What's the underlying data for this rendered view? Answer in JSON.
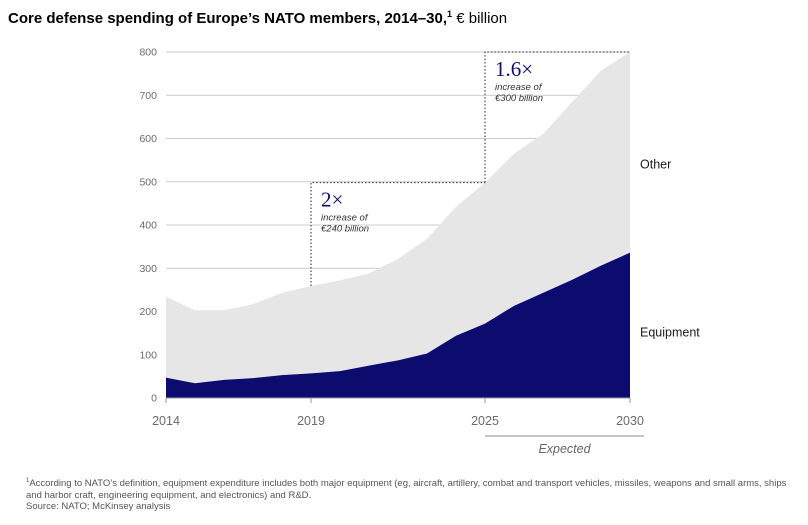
{
  "title": {
    "main": "Core defense spending of Europe’s NATO members, 2014–30,",
    "footnote_ref": "1",
    "unit": " € billion"
  },
  "chart_data": {
    "type": "area",
    "x": [
      2014,
      2015,
      2016,
      2017,
      2018,
      2019,
      2020,
      2021,
      2022,
      2023,
      2024,
      2025,
      2026,
      2027,
      2028,
      2029,
      2030
    ],
    "series": [
      {
        "name": "Equipment",
        "values": [
          47,
          34,
          42,
          46,
          53,
          57,
          62,
          75,
          87,
          103,
          144,
          172,
          213,
          243,
          273,
          306,
          336
        ]
      },
      {
        "name": "Other",
        "values": [
          187,
          169,
          161,
          171,
          190,
          202,
          210,
          213,
          235,
          265,
          298,
          326,
          352,
          367,
          411,
          451,
          464
        ]
      }
    ],
    "total": [
      234,
      203,
      203,
      217,
      243,
      259,
      272,
      288,
      322,
      368,
      442,
      498,
      565,
      610,
      684,
      757,
      800
    ],
    "xticks": [
      "2014",
      "2019",
      "2025",
      "2030"
    ],
    "yticks": [
      "0",
      "100",
      "200",
      "300",
      "400",
      "500",
      "600",
      "700",
      "800"
    ],
    "ylim": [
      0,
      800
    ],
    "xlim": [
      2014,
      2030
    ],
    "grid": true,
    "colors": {
      "Equipment": "#0c0c6e",
      "Other": "#e6e6e6"
    },
    "series_labels": [
      "Other",
      "Equipment"
    ],
    "annotations": [
      {
        "big": "2×",
        "line1": "increase of",
        "line2": "€240 billion",
        "from_year": 2019,
        "to_year": 2025,
        "from_value": 259,
        "to_value": 498
      },
      {
        "big": "1.6×",
        "line1": "increase of",
        "line2": "€300 billion",
        "from_year": 2025,
        "to_year": 2030,
        "from_value": 498,
        "to_value": 800
      }
    ],
    "expected_label": "Expected",
    "expected_range": [
      2025,
      2030
    ]
  },
  "footnotes": {
    "marker": "1",
    "note": "According to NATO’s definition, equipment expenditure includes both major equipment (eg, aircraft, artillery, combat and transport vehicles, missiles, weapons and small arms, ships and harbor craft, engineering equipment, and electronics) and R&D.",
    "source": "Source: NATO; McKinsey analysis"
  }
}
